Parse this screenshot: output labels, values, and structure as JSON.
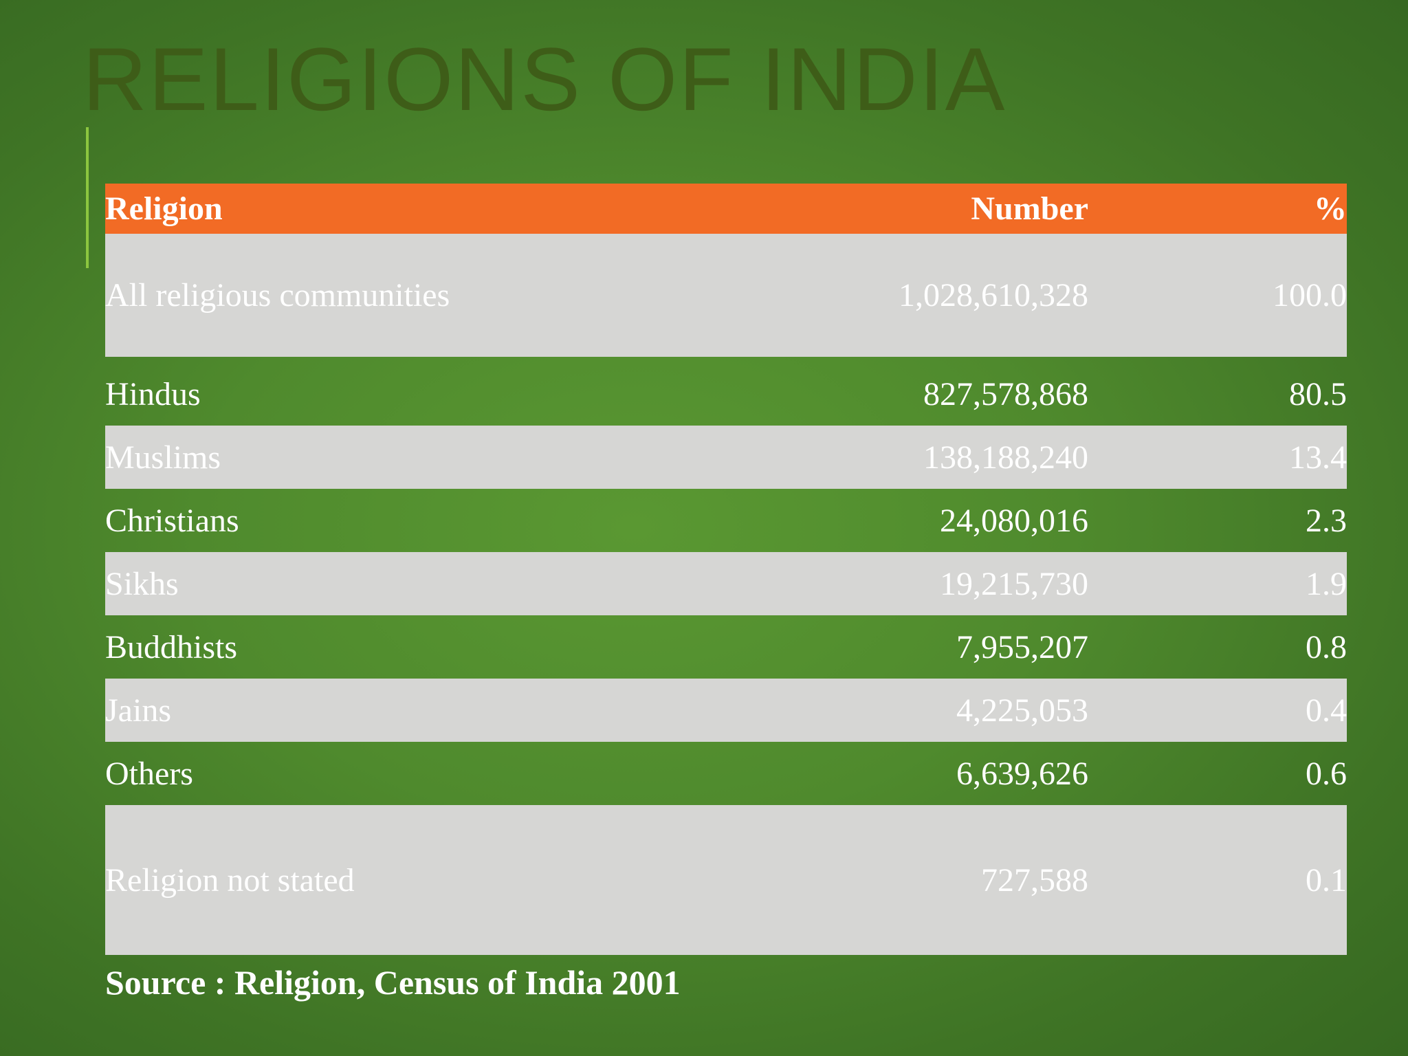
{
  "slide": {
    "title": "RELIGIONS OF INDIA",
    "source": "Source : Religion, Census of India 2001",
    "colors": {
      "background": "#4f8a2d",
      "header": "#f26b25",
      "shaded_row": "#d6d6d4",
      "accent": "#8cc63f",
      "title": "#3e5d18"
    }
  },
  "table": {
    "headers": [
      "Religion",
      "Number",
      "%"
    ],
    "rows": [
      [
        "All religious communities",
        "1,028,610,328",
        "100.0"
      ],
      [
        "Hindus",
        "827,578,868",
        "80.5"
      ],
      [
        "Muslims",
        "138,188,240",
        "13.4"
      ],
      [
        "Christians",
        "24,080,016",
        "2.3"
      ],
      [
        "Sikhs",
        "19,215,730",
        "1.9"
      ],
      [
        "Buddhists",
        "7,955,207",
        "0.8"
      ],
      [
        "Jains",
        "4,225,053",
        "0.4"
      ],
      [
        "Others",
        "6,639,626",
        "0.6"
      ],
      [
        "Religion not stated",
        "727,588",
        "0.1"
      ]
    ]
  }
}
